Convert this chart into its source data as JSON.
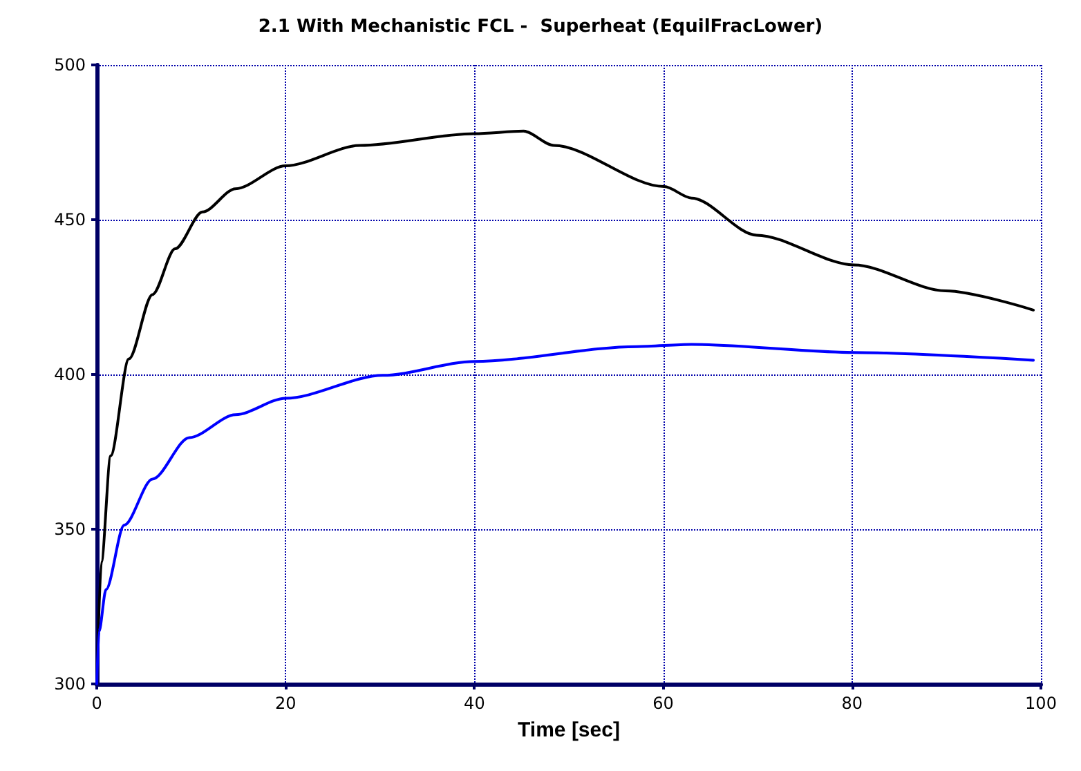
{
  "chart_data": {
    "type": "line",
    "title": "2.1 With Mechanistic FCL -  Superheat (EquilFracLower)",
    "xlabel": "Time [sec]",
    "xlim": [
      0,
      100
    ],
    "xticks": [
      0,
      20,
      40,
      60,
      80,
      100
    ],
    "ylim": [
      300,
      500
    ],
    "yticks": [
      300,
      350,
      400,
      450,
      500
    ],
    "grid": true,
    "marker": "none",
    "line_style": "solid",
    "series": [
      {
        "color": "#000000",
        "x": [
          0,
          0.49,
          1.47,
          3.4,
          5.9,
          8.3,
          11.2,
          14.7,
          20,
          27.9,
          40,
          45.2,
          48.4,
          60.1,
          63,
          69.9,
          80.2,
          89.9,
          99.2
        ],
        "values": [
          300,
          339.4,
          373.7,
          405,
          425.8,
          440.6,
          452.5,
          460,
          467.4,
          474,
          477.8,
          478.6,
          474,
          460.7,
          457,
          445,
          435.4,
          427,
          420.8
        ]
      },
      {
        "color": "#0000ff",
        "x": [
          0,
          0.24,
          0.98,
          2.9,
          5.9,
          9.8,
          14.7,
          20,
          30.3,
          40,
          57.2,
          63,
          80.2,
          99.2
        ],
        "values": [
          300,
          317,
          330.5,
          351.3,
          366.2,
          379.6,
          387,
          392.3,
          399.7,
          404.2,
          409,
          409.7,
          407.1,
          404.6
        ]
      }
    ]
  }
}
